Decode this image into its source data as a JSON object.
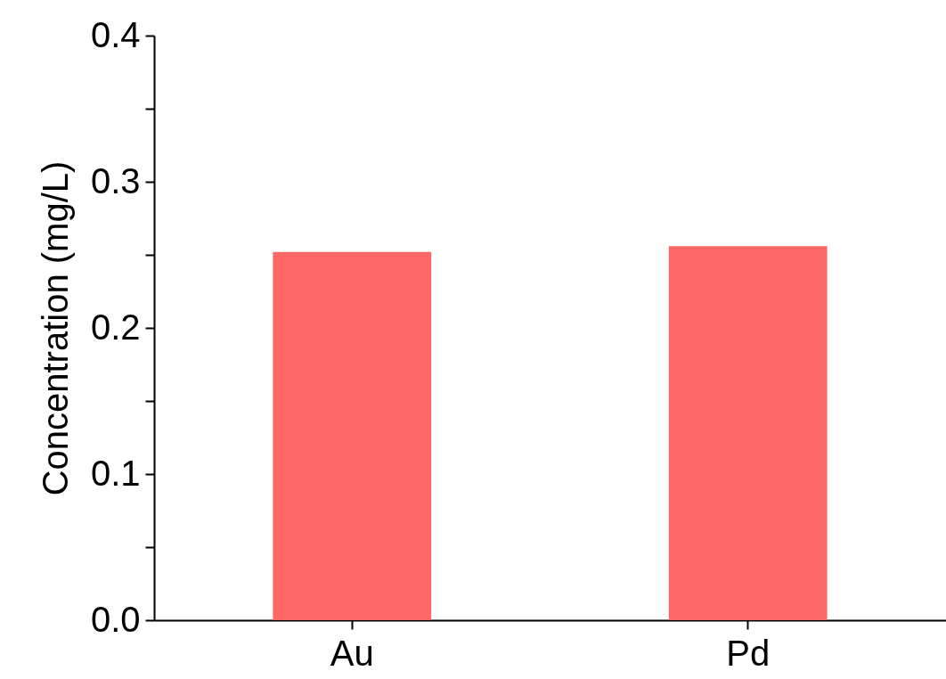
{
  "chart_data": {
    "type": "bar",
    "ylabel": "Concentration (mg/L)",
    "categories": [
      "Au",
      "Pd"
    ],
    "values": [
      0.252,
      0.256
    ],
    "color": "#ff6666",
    "ylim": [
      0,
      0.4
    ],
    "yticks": [
      {
        "value": 0,
        "label": "0.0"
      },
      {
        "value": 0.05,
        "label": null
      },
      0.1,
      {
        "value": 0.15,
        "label": null
      },
      0.2,
      {
        "value": 0.25,
        "label": null
      },
      0.3,
      {
        "value": 0.35,
        "label": null
      },
      0.4
    ],
    "grid": false
  }
}
